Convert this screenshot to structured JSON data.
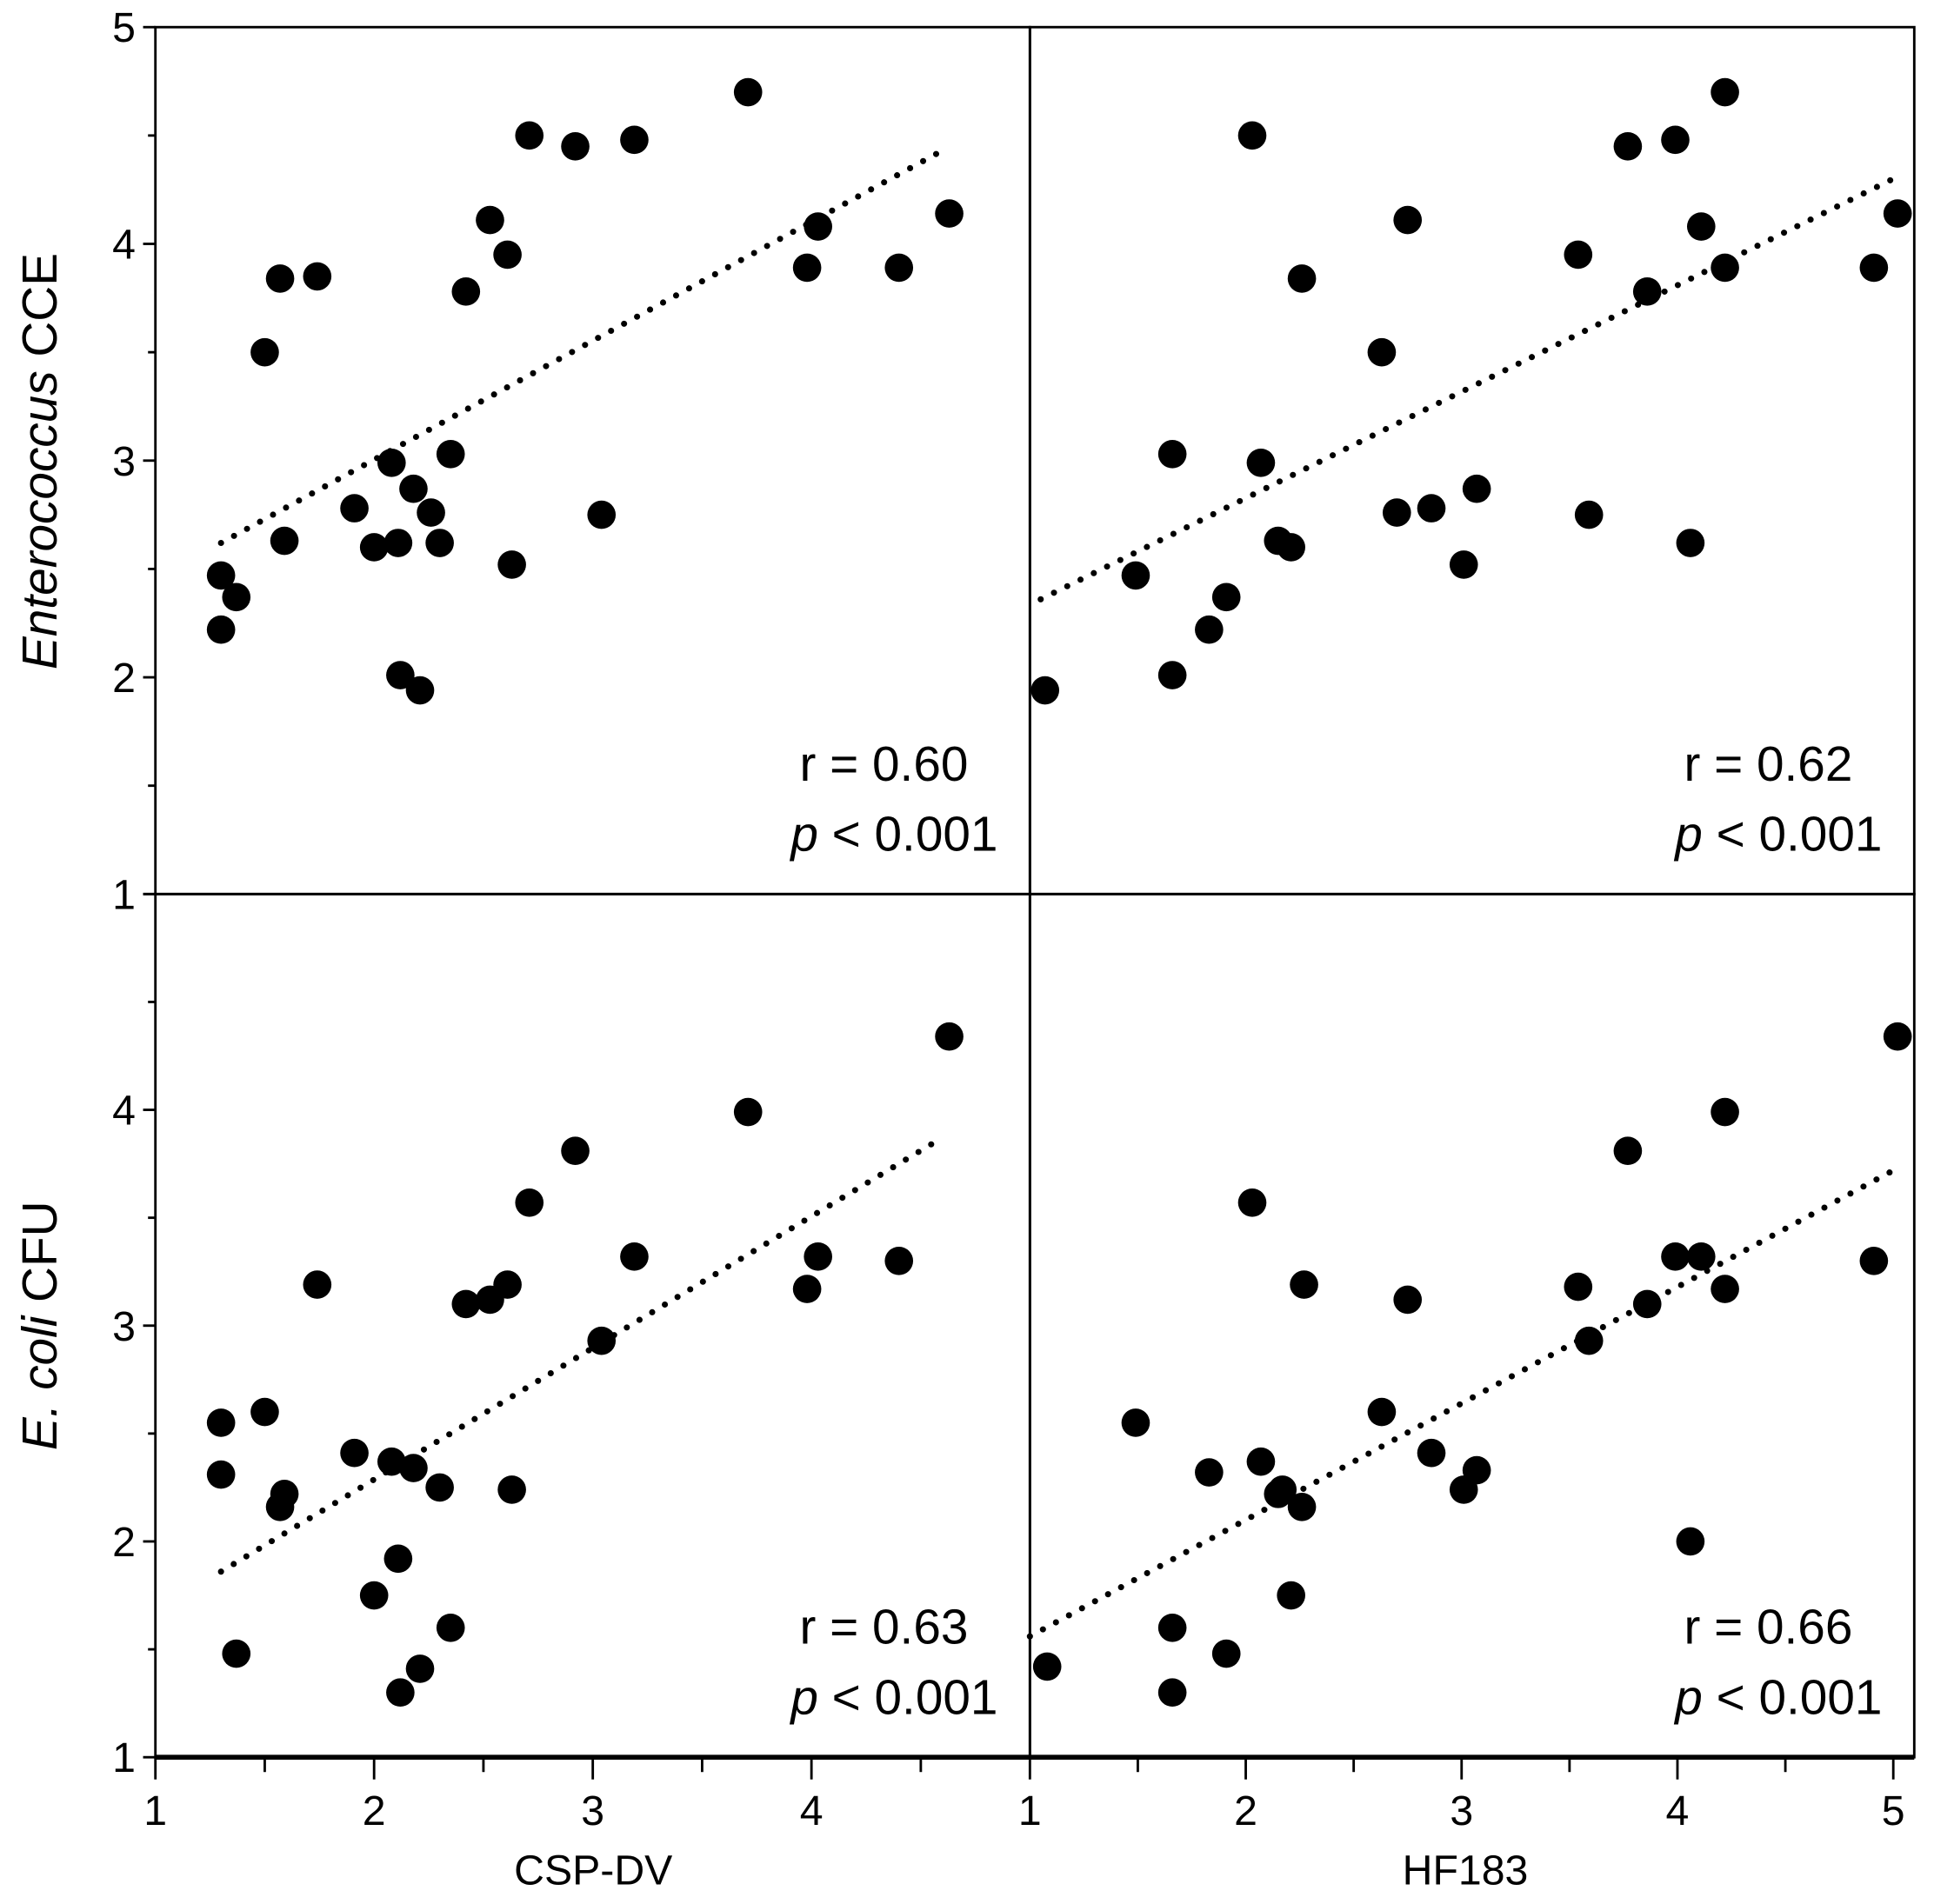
{
  "chart_data": [
    {
      "type": "scatter",
      "panel": "top-left",
      "xlabel": "",
      "ylabel": "Enterococcus CCE",
      "ylabel_italic": "Enterococcus",
      "ylabel_rest": " CCE",
      "xlim": [
        1,
        5
      ],
      "ylim": [
        1,
        5
      ],
      "xticks": [
        1,
        2,
        3,
        4
      ],
      "yticks": [
        1,
        2,
        3,
        4,
        5
      ],
      "annotation_r": "r = 0.60",
      "annotation_p_italic": "p",
      "annotation_p_rest": " < 0.001",
      "trendline": {
        "style": "dotted",
        "x": [
          1.3,
          4.58
        ],
        "y": [
          2.62,
          4.42
        ]
      },
      "points": [
        [
          1.3,
          2.47
        ],
        [
          1.37,
          2.37
        ],
        [
          1.3,
          2.22
        ],
        [
          1.5,
          3.5
        ],
        [
          1.57,
          3.84
        ],
        [
          1.59,
          2.63
        ],
        [
          1.74,
          3.85
        ],
        [
          1.91,
          2.78
        ],
        [
          2.0,
          2.6
        ],
        [
          2.08,
          2.99
        ],
        [
          2.11,
          2.62
        ],
        [
          2.12,
          2.01
        ],
        [
          2.21,
          1.94
        ],
        [
          2.18,
          2.87
        ],
        [
          2.26,
          2.76
        ],
        [
          2.3,
          2.62
        ],
        [
          2.35,
          3.03
        ],
        [
          2.42,
          3.78
        ],
        [
          2.53,
          4.11
        ],
        [
          2.61,
          3.95
        ],
        [
          2.63,
          2.52
        ],
        [
          2.71,
          4.5
        ],
        [
          2.92,
          4.45
        ],
        [
          3.04,
          2.75
        ],
        [
          3.19,
          4.48
        ],
        [
          3.71,
          4.7
        ],
        [
          3.98,
          3.89
        ],
        [
          4.03,
          4.08
        ],
        [
          4.4,
          3.89
        ],
        [
          4.63,
          4.14
        ]
      ]
    },
    {
      "type": "scatter",
      "panel": "top-right",
      "xlabel": "",
      "ylabel": "",
      "xlim": [
        1,
        5.1
      ],
      "ylim": [
        1,
        5
      ],
      "xticks": [
        1,
        2,
        3,
        4,
        5
      ],
      "yticks": [
        1,
        2,
        3,
        4,
        5
      ],
      "annotation_r": "r = 0.62",
      "annotation_p_italic": "p",
      "annotation_p_rest": " < 0.001",
      "trendline": {
        "style": "dotted",
        "x": [
          1.05,
          5.02
        ],
        "y": [
          2.36,
          4.31
        ]
      },
      "points": [
        [
          1.07,
          1.94
        ],
        [
          1.49,
          2.47
        ],
        [
          1.66,
          3.03
        ],
        [
          1.66,
          2.01
        ],
        [
          1.83,
          2.22
        ],
        [
          1.91,
          2.37
        ],
        [
          2.03,
          4.5
        ],
        [
          2.07,
          2.99
        ],
        [
          2.15,
          2.63
        ],
        [
          2.21,
          2.6
        ],
        [
          2.26,
          3.84
        ],
        [
          2.63,
          3.5
        ],
        [
          2.7,
          2.76
        ],
        [
          2.75,
          4.11
        ],
        [
          2.86,
          2.78
        ],
        [
          3.01,
          2.52
        ],
        [
          3.07,
          2.87
        ],
        [
          3.54,
          3.95
        ],
        [
          3.59,
          2.75
        ],
        [
          3.77,
          4.45
        ],
        [
          3.86,
          3.78
        ],
        [
          3.99,
          4.48
        ],
        [
          4.06,
          2.62
        ],
        [
          4.11,
          4.08
        ],
        [
          4.22,
          4.7
        ],
        [
          4.22,
          3.89
        ],
        [
          4.91,
          3.89
        ],
        [
          5.02,
          4.14
        ]
      ]
    },
    {
      "type": "scatter",
      "panel": "bottom-left",
      "xlabel": "CSP-DV",
      "ylabel": "E. coli CFU",
      "ylabel_italic": "E. coli",
      "ylabel_rest": " CFU",
      "xlim": [
        1,
        5
      ],
      "ylim": [
        1,
        5
      ],
      "xticks": [
        1,
        2,
        3,
        4
      ],
      "yticks": [
        1,
        2,
        3,
        4
      ],
      "annotation_r": "r = 0.63",
      "annotation_p_italic": "p",
      "annotation_p_rest": " < 0.001",
      "trendline": {
        "style": "dotted",
        "x": [
          1.3,
          4.58
        ],
        "y": [
          1.86,
          3.86
        ]
      },
      "points": [
        [
          1.3,
          2.55
        ],
        [
          1.3,
          2.31
        ],
        [
          1.37,
          1.48
        ],
        [
          1.5,
          2.6
        ],
        [
          1.57,
          2.16
        ],
        [
          1.59,
          2.22
        ],
        [
          1.74,
          3.19
        ],
        [
          1.91,
          2.41
        ],
        [
          2.0,
          1.75
        ],
        [
          2.08,
          2.37
        ],
        [
          2.11,
          1.92
        ],
        [
          2.12,
          1.3
        ],
        [
          2.21,
          1.41
        ],
        [
          2.18,
          2.34
        ],
        [
          2.3,
          2.25
        ],
        [
          2.35,
          1.6
        ],
        [
          2.42,
          3.1
        ],
        [
          2.53,
          3.12
        ],
        [
          2.61,
          3.19
        ],
        [
          2.63,
          2.24
        ],
        [
          2.71,
          3.57
        ],
        [
          2.92,
          3.81
        ],
        [
          3.04,
          2.93
        ],
        [
          3.19,
          3.32
        ],
        [
          3.71,
          3.99
        ],
        [
          3.98,
          3.17
        ],
        [
          4.03,
          3.32
        ],
        [
          4.4,
          3.3
        ],
        [
          4.63,
          4.34
        ]
      ]
    },
    {
      "type": "scatter",
      "panel": "bottom-right",
      "xlabel": "HF183",
      "ylabel": "",
      "xlim": [
        1,
        5.1
      ],
      "ylim": [
        1,
        5
      ],
      "xticks": [
        1,
        2,
        3,
        4,
        5
      ],
      "yticks": [
        1,
        2,
        3,
        4
      ],
      "annotation_r": "r = 0.66",
      "annotation_p_italic": "p",
      "annotation_p_rest": " < 0.001",
      "trendline": {
        "style": "dotted",
        "x": [
          1.0,
          5.02
        ],
        "y": [
          1.56,
          3.73
        ]
      },
      "points": [
        [
          1.08,
          1.42
        ],
        [
          1.49,
          2.55
        ],
        [
          1.66,
          1.6
        ],
        [
          1.66,
          1.3
        ],
        [
          1.83,
          2.32
        ],
        [
          1.91,
          1.48
        ],
        [
          2.03,
          3.57
        ],
        [
          2.07,
          2.37
        ],
        [
          2.17,
          2.24
        ],
        [
          2.15,
          2.22
        ],
        [
          2.21,
          1.75
        ],
        [
          2.26,
          2.16
        ],
        [
          2.27,
          3.19
        ],
        [
          2.63,
          2.6
        ],
        [
          2.75,
          3.12
        ],
        [
          2.86,
          2.41
        ],
        [
          3.01,
          2.24
        ],
        [
          3.07,
          2.33
        ],
        [
          3.54,
          3.18
        ],
        [
          3.59,
          2.93
        ],
        [
          3.77,
          3.81
        ],
        [
          3.86,
          3.1
        ],
        [
          3.99,
          3.32
        ],
        [
          4.06,
          2.0
        ],
        [
          4.11,
          3.32
        ],
        [
          4.22,
          3.99
        ],
        [
          4.22,
          3.17
        ],
        [
          4.91,
          3.3
        ],
        [
          5.02,
          4.34
        ]
      ]
    }
  ]
}
